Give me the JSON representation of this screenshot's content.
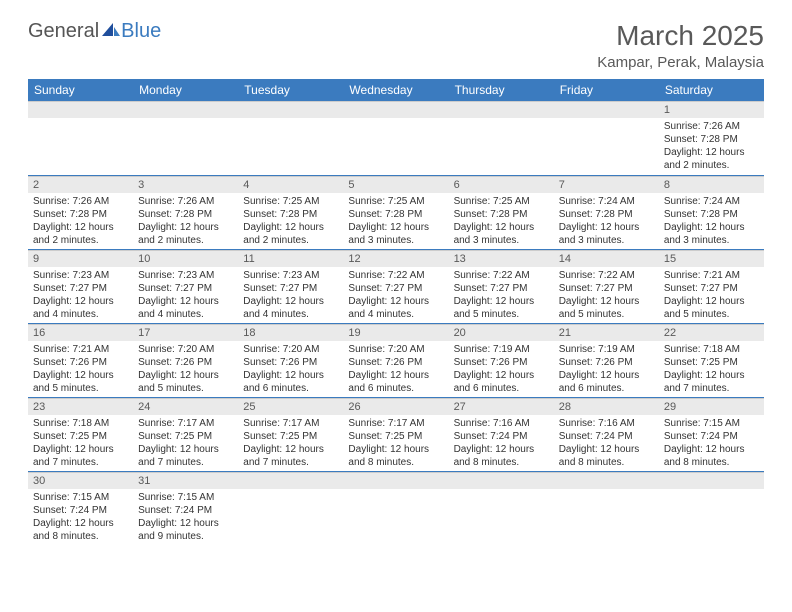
{
  "logo": {
    "text1": "General",
    "text2": "Blue"
  },
  "title": "March 2025",
  "location": "Kampar, Perak, Malaysia",
  "colors": {
    "header_bg": "#3b7bbf",
    "header_fg": "#ffffff",
    "daynum_bg": "#eaeaea",
    "text_color": "#333333",
    "title_color": "#595959",
    "row_border": "#3b7bbf"
  },
  "weekdays": [
    "Sunday",
    "Monday",
    "Tuesday",
    "Wednesday",
    "Thursday",
    "Friday",
    "Saturday"
  ],
  "weeks": [
    [
      null,
      null,
      null,
      null,
      null,
      null,
      {
        "n": "1",
        "sr": "Sunrise: 7:26 AM",
        "ss": "Sunset: 7:28 PM",
        "dl": "Daylight: 12 hours and 2 minutes."
      }
    ],
    [
      {
        "n": "2",
        "sr": "Sunrise: 7:26 AM",
        "ss": "Sunset: 7:28 PM",
        "dl": "Daylight: 12 hours and 2 minutes."
      },
      {
        "n": "3",
        "sr": "Sunrise: 7:26 AM",
        "ss": "Sunset: 7:28 PM",
        "dl": "Daylight: 12 hours and 2 minutes."
      },
      {
        "n": "4",
        "sr": "Sunrise: 7:25 AM",
        "ss": "Sunset: 7:28 PM",
        "dl": "Daylight: 12 hours and 2 minutes."
      },
      {
        "n": "5",
        "sr": "Sunrise: 7:25 AM",
        "ss": "Sunset: 7:28 PM",
        "dl": "Daylight: 12 hours and 3 minutes."
      },
      {
        "n": "6",
        "sr": "Sunrise: 7:25 AM",
        "ss": "Sunset: 7:28 PM",
        "dl": "Daylight: 12 hours and 3 minutes."
      },
      {
        "n": "7",
        "sr": "Sunrise: 7:24 AM",
        "ss": "Sunset: 7:28 PM",
        "dl": "Daylight: 12 hours and 3 minutes."
      },
      {
        "n": "8",
        "sr": "Sunrise: 7:24 AM",
        "ss": "Sunset: 7:28 PM",
        "dl": "Daylight: 12 hours and 3 minutes."
      }
    ],
    [
      {
        "n": "9",
        "sr": "Sunrise: 7:23 AM",
        "ss": "Sunset: 7:27 PM",
        "dl": "Daylight: 12 hours and 4 minutes."
      },
      {
        "n": "10",
        "sr": "Sunrise: 7:23 AM",
        "ss": "Sunset: 7:27 PM",
        "dl": "Daylight: 12 hours and 4 minutes."
      },
      {
        "n": "11",
        "sr": "Sunrise: 7:23 AM",
        "ss": "Sunset: 7:27 PM",
        "dl": "Daylight: 12 hours and 4 minutes."
      },
      {
        "n": "12",
        "sr": "Sunrise: 7:22 AM",
        "ss": "Sunset: 7:27 PM",
        "dl": "Daylight: 12 hours and 4 minutes."
      },
      {
        "n": "13",
        "sr": "Sunrise: 7:22 AM",
        "ss": "Sunset: 7:27 PM",
        "dl": "Daylight: 12 hours and 5 minutes."
      },
      {
        "n": "14",
        "sr": "Sunrise: 7:22 AM",
        "ss": "Sunset: 7:27 PM",
        "dl": "Daylight: 12 hours and 5 minutes."
      },
      {
        "n": "15",
        "sr": "Sunrise: 7:21 AM",
        "ss": "Sunset: 7:27 PM",
        "dl": "Daylight: 12 hours and 5 minutes."
      }
    ],
    [
      {
        "n": "16",
        "sr": "Sunrise: 7:21 AM",
        "ss": "Sunset: 7:26 PM",
        "dl": "Daylight: 12 hours and 5 minutes."
      },
      {
        "n": "17",
        "sr": "Sunrise: 7:20 AM",
        "ss": "Sunset: 7:26 PM",
        "dl": "Daylight: 12 hours and 5 minutes."
      },
      {
        "n": "18",
        "sr": "Sunrise: 7:20 AM",
        "ss": "Sunset: 7:26 PM",
        "dl": "Daylight: 12 hours and 6 minutes."
      },
      {
        "n": "19",
        "sr": "Sunrise: 7:20 AM",
        "ss": "Sunset: 7:26 PM",
        "dl": "Daylight: 12 hours and 6 minutes."
      },
      {
        "n": "20",
        "sr": "Sunrise: 7:19 AM",
        "ss": "Sunset: 7:26 PM",
        "dl": "Daylight: 12 hours and 6 minutes."
      },
      {
        "n": "21",
        "sr": "Sunrise: 7:19 AM",
        "ss": "Sunset: 7:26 PM",
        "dl": "Daylight: 12 hours and 6 minutes."
      },
      {
        "n": "22",
        "sr": "Sunrise: 7:18 AM",
        "ss": "Sunset: 7:25 PM",
        "dl": "Daylight: 12 hours and 7 minutes."
      }
    ],
    [
      {
        "n": "23",
        "sr": "Sunrise: 7:18 AM",
        "ss": "Sunset: 7:25 PM",
        "dl": "Daylight: 12 hours and 7 minutes."
      },
      {
        "n": "24",
        "sr": "Sunrise: 7:17 AM",
        "ss": "Sunset: 7:25 PM",
        "dl": "Daylight: 12 hours and 7 minutes."
      },
      {
        "n": "25",
        "sr": "Sunrise: 7:17 AM",
        "ss": "Sunset: 7:25 PM",
        "dl": "Daylight: 12 hours and 7 minutes."
      },
      {
        "n": "26",
        "sr": "Sunrise: 7:17 AM",
        "ss": "Sunset: 7:25 PM",
        "dl": "Daylight: 12 hours and 8 minutes."
      },
      {
        "n": "27",
        "sr": "Sunrise: 7:16 AM",
        "ss": "Sunset: 7:24 PM",
        "dl": "Daylight: 12 hours and 8 minutes."
      },
      {
        "n": "28",
        "sr": "Sunrise: 7:16 AM",
        "ss": "Sunset: 7:24 PM",
        "dl": "Daylight: 12 hours and 8 minutes."
      },
      {
        "n": "29",
        "sr": "Sunrise: 7:15 AM",
        "ss": "Sunset: 7:24 PM",
        "dl": "Daylight: 12 hours and 8 minutes."
      }
    ],
    [
      {
        "n": "30",
        "sr": "Sunrise: 7:15 AM",
        "ss": "Sunset: 7:24 PM",
        "dl": "Daylight: 12 hours and 8 minutes."
      },
      {
        "n": "31",
        "sr": "Sunrise: 7:15 AM",
        "ss": "Sunset: 7:24 PM",
        "dl": "Daylight: 12 hours and 9 minutes."
      },
      null,
      null,
      null,
      null,
      null
    ]
  ]
}
